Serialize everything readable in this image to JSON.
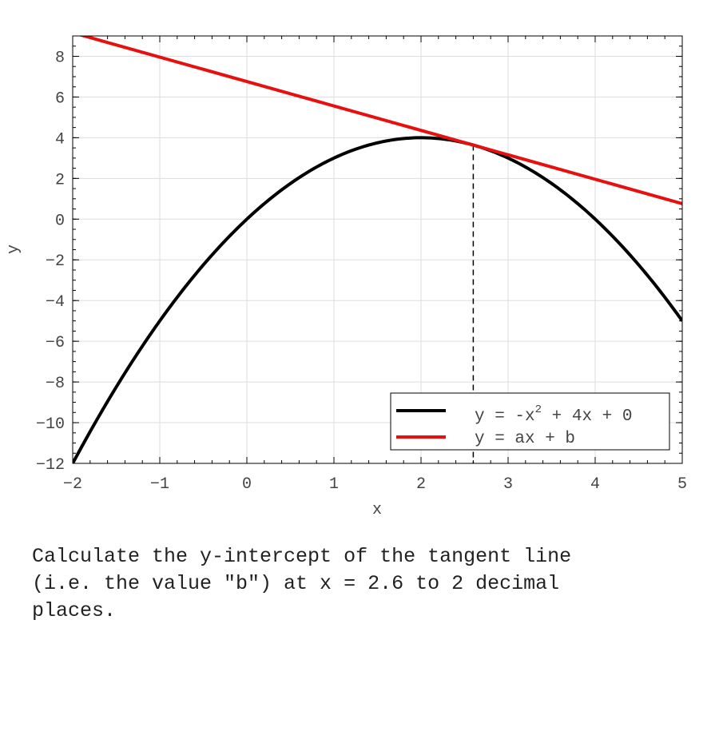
{
  "chart_data": {
    "type": "line",
    "xlabel": "x",
    "ylabel": "y",
    "xlim": [
      -2,
      5
    ],
    "ylim": [
      -12,
      9
    ],
    "x_ticks": [
      -2,
      -1,
      0,
      1,
      2,
      3,
      4,
      5
    ],
    "y_ticks": [
      -12,
      -10,
      -8,
      -6,
      -4,
      -2,
      0,
      2,
      4,
      6,
      8
    ],
    "grid": true,
    "legend_position": "lower-right",
    "series": [
      {
        "legend_label": "y = -x",
        "legend_exponent": "2",
        "legend_suffix": " + 4x + 0",
        "kind": "quadratic",
        "coefficients": {
          "a": -1,
          "b": 4,
          "c": 0
        },
        "color": "#000000"
      },
      {
        "legend_label": "y = ax + b",
        "kind": "linear",
        "slope": -1.2,
        "intercept": 6.76,
        "color": "#e8100f"
      }
    ],
    "tangent_point_x": 2.6,
    "marker_line": {
      "x": 2.6,
      "style": "dashed",
      "color": "#000000"
    }
  },
  "question": "Calculate the y-intercept of the tangent line\n(i.e. the value \"b\") at x = 2.6 to 2 decimal\nplaces."
}
